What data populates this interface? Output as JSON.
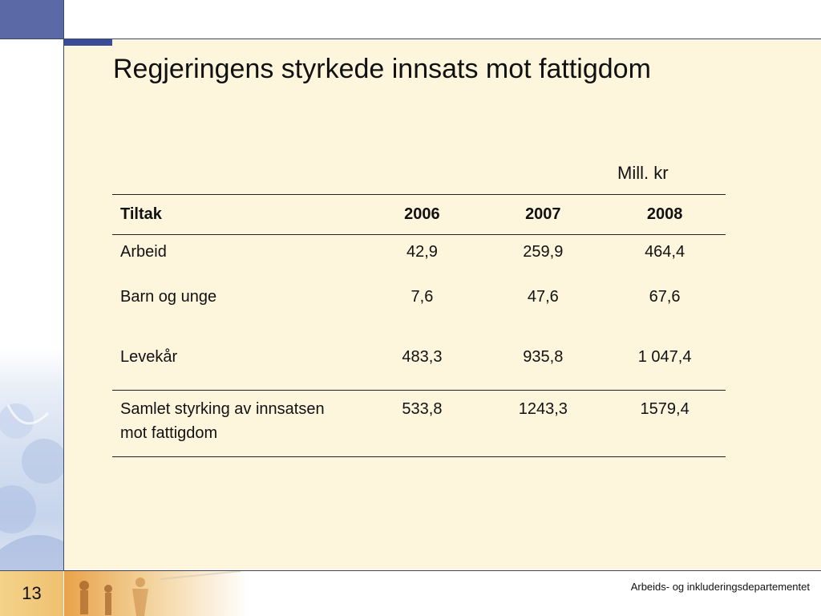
{
  "slide": {
    "title": "Regjeringens styrkede innsats mot fattigdom",
    "unit": "Mill. kr",
    "page_number": "13",
    "ministry": "Arbeids- og inkluderingsdepartementet"
  },
  "table": {
    "columns": [
      "Tiltak",
      "2006",
      "2007",
      "2008"
    ],
    "rows": [
      {
        "label": "Arbeid",
        "v2006": "42,9",
        "v2007": "259,9",
        "v2008": "464,4"
      },
      {
        "label": "Barn og unge",
        "v2006": "7,6",
        "v2007": "47,6",
        "v2008": "67,6"
      },
      {
        "label": "Levekår",
        "v2006": "483,3",
        "v2007": "935,8",
        "v2008": "1 047,4"
      }
    ],
    "total": {
      "label": "Samlet styrking av innsatsen mot fattigdom",
      "v2006": "533,8",
      "v2007": "1243,3",
      "v2008": "1579,4"
    }
  },
  "colors": {
    "content_background": "#fdf6dd",
    "accent": "#3a4c98",
    "corner": "#5b6aa6",
    "page_number_background": "#f0c070"
  }
}
